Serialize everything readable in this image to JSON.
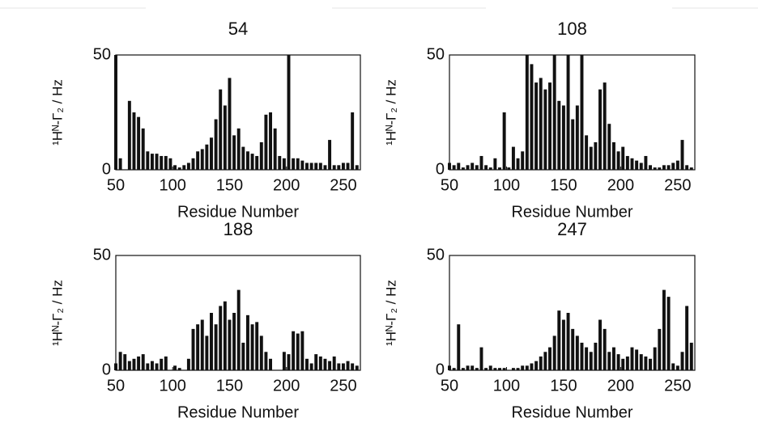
{
  "chart_data": [
    {
      "type": "bar",
      "title": "54",
      "xlabel": "Residue Number",
      "ylabel": "¹Hᴺ-Γ₂ / Hz",
      "color": "#111111",
      "xlim": [
        50,
        265
      ],
      "ylim": [
        0,
        50
      ],
      "xticks": [
        50,
        100,
        150,
        200,
        250
      ],
      "yticks": [
        0,
        50
      ],
      "x": [
        50,
        54,
        58,
        62,
        66,
        70,
        74,
        78,
        82,
        86,
        90,
        94,
        98,
        102,
        106,
        110,
        114,
        118,
        122,
        126,
        130,
        134,
        138,
        142,
        146,
        150,
        154,
        158,
        162,
        166,
        170,
        174,
        178,
        182,
        186,
        190,
        194,
        198,
        202,
        206,
        210,
        214,
        218,
        222,
        226,
        230,
        234,
        238,
        242,
        246,
        250,
        254,
        258,
        262
      ],
      "values": [
        50,
        5,
        0,
        30,
        25,
        23,
        18,
        8,
        7,
        7,
        6,
        6,
        5,
        2,
        1,
        2,
        3,
        5,
        8,
        9,
        11,
        14,
        22,
        35,
        28,
        40,
        15,
        18,
        10,
        8,
        7,
        6,
        12,
        24,
        25,
        18,
        6,
        5,
        50,
        5,
        5,
        4,
        3,
        3,
        3,
        3,
        2,
        13,
        2,
        2,
        3,
        3,
        25,
        2
      ]
    },
    {
      "type": "bar",
      "title": "108",
      "xlabel": "Residue Number",
      "ylabel": "¹Hᴺ-Γ₂ / Hz",
      "color": "#111111",
      "xlim": [
        50,
        265
      ],
      "ylim": [
        0,
        50
      ],
      "xticks": [
        50,
        100,
        150,
        200,
        250
      ],
      "yticks": [
        0,
        50
      ],
      "x": [
        50,
        54,
        58,
        62,
        66,
        70,
        74,
        78,
        82,
        86,
        90,
        94,
        98,
        102,
        106,
        110,
        114,
        118,
        122,
        126,
        130,
        134,
        138,
        142,
        146,
        150,
        154,
        158,
        162,
        166,
        170,
        174,
        178,
        182,
        186,
        190,
        194,
        198,
        202,
        206,
        210,
        214,
        218,
        222,
        226,
        230,
        234,
        238,
        242,
        246,
        250,
        254,
        258,
        262
      ],
      "values": [
        3,
        2,
        3,
        1,
        2,
        3,
        2,
        6,
        2,
        1,
        5,
        1,
        25,
        1,
        10,
        5,
        8,
        50,
        46,
        38,
        40,
        35,
        38,
        50,
        30,
        28,
        50,
        22,
        28,
        50,
        15,
        10,
        12,
        35,
        38,
        20,
        12,
        8,
        10,
        6,
        5,
        4,
        3,
        6,
        2,
        1,
        1,
        2,
        2,
        3,
        4,
        13,
        2,
        1
      ]
    },
    {
      "type": "bar",
      "title": "188",
      "xlabel": "Residue Number",
      "ylabel": "¹Hᴺ-Γ₂ / Hz",
      "color": "#111111",
      "xlim": [
        50,
        265
      ],
      "ylim": [
        0,
        50
      ],
      "xticks": [
        50,
        100,
        150,
        200,
        250
      ],
      "yticks": [
        0,
        50
      ],
      "x": [
        50,
        54,
        58,
        62,
        66,
        70,
        74,
        78,
        82,
        86,
        90,
        94,
        98,
        102,
        106,
        110,
        114,
        118,
        122,
        126,
        130,
        134,
        138,
        142,
        146,
        150,
        154,
        158,
        162,
        166,
        170,
        174,
        178,
        182,
        186,
        190,
        194,
        198,
        202,
        206,
        210,
        214,
        218,
        222,
        226,
        230,
        234,
        238,
        242,
        246,
        250,
        254,
        258,
        262
      ],
      "values": [
        3,
        8,
        7,
        4,
        5,
        6,
        7,
        3,
        4,
        3,
        5,
        6,
        0,
        2,
        1,
        0,
        5,
        18,
        20,
        22,
        15,
        25,
        20,
        28,
        30,
        22,
        25,
        35,
        12,
        24,
        20,
        21,
        15,
        8,
        5,
        0,
        0,
        8,
        7,
        17,
        16,
        17,
        5,
        3,
        7,
        6,
        5,
        4,
        6,
        3,
        3,
        4,
        3,
        2
      ]
    },
    {
      "type": "bar",
      "title": "247",
      "xlabel": "Residue Number",
      "ylabel": "¹Hᴺ-Γ₂ / Hz",
      "color": "#111111",
      "xlim": [
        50,
        265
      ],
      "ylim": [
        0,
        50
      ],
      "xticks": [
        50,
        100,
        150,
        200,
        250
      ],
      "yticks": [
        0,
        50
      ],
      "x": [
        50,
        54,
        58,
        62,
        66,
        70,
        74,
        78,
        82,
        86,
        90,
        94,
        98,
        102,
        106,
        110,
        114,
        118,
        122,
        126,
        130,
        134,
        138,
        142,
        146,
        150,
        154,
        158,
        162,
        166,
        170,
        174,
        178,
        182,
        186,
        190,
        194,
        198,
        202,
        206,
        210,
        214,
        218,
        222,
        226,
        230,
        234,
        238,
        242,
        246,
        250,
        254,
        258,
        262
      ],
      "values": [
        2,
        1,
        20,
        1,
        2,
        2,
        1,
        10,
        1,
        2,
        1,
        1,
        1,
        0,
        1,
        1,
        2,
        2,
        3,
        4,
        6,
        8,
        10,
        15,
        26,
        22,
        25,
        18,
        15,
        12,
        10,
        8,
        12,
        22,
        18,
        8,
        10,
        7,
        5,
        6,
        10,
        9,
        7,
        6,
        5,
        10,
        18,
        35,
        32,
        3,
        2,
        8,
        28,
        12
      ]
    }
  ]
}
